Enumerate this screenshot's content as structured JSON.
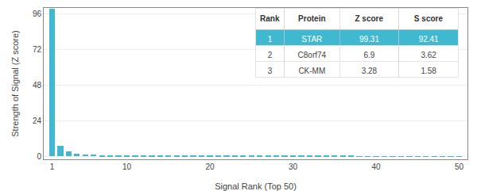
{
  "chart_data": {
    "type": "bar",
    "x": [
      1,
      2,
      3,
      4,
      5,
      6,
      7,
      8,
      9,
      10,
      11,
      12,
      13,
      14,
      15,
      16,
      17,
      18,
      19,
      20,
      21,
      22,
      23,
      24,
      25,
      26,
      27,
      28,
      29,
      30,
      31,
      32,
      33,
      34,
      35,
      36,
      37,
      38,
      39,
      40,
      41,
      42,
      43,
      44,
      45,
      46,
      47,
      48,
      49,
      50
    ],
    "values": [
      99.31,
      6.9,
      3.28,
      1.8,
      1.4,
      1.1,
      0.9,
      0.8,
      0.7,
      0.65,
      0.6,
      0.55,
      0.5,
      0.48,
      0.45,
      0.42,
      0.4,
      0.38,
      0.35,
      0.33,
      0.31,
      0.3,
      0.28,
      0.27,
      0.26,
      0.25,
      0.24,
      0.23,
      0.22,
      0.21,
      0.2,
      0.19,
      0.18,
      0.17,
      0.16,
      0.15,
      0.14,
      0.13,
      0.12,
      0.11,
      0.1,
      0.09,
      0.08,
      0.07,
      0.06,
      0.05,
      0.04,
      0.03,
      0.02,
      0.01
    ],
    "color": "#40b8d0",
    "xlabel": "Signal Rank (Top 50)",
    "ylabel": "Strength of Signal (Z score)",
    "xlim": [
      0,
      51
    ],
    "xticks": [
      1,
      10,
      20,
      30,
      40,
      50
    ],
    "ylim": [
      -2,
      100
    ],
    "yticks": [
      0,
      24,
      48,
      72,
      96
    ],
    "grid": true,
    "table": {
      "headers": [
        "Rank",
        "Protein",
        "Z score",
        "S score"
      ],
      "rows": [
        [
          "1",
          "STAR",
          "99.31",
          "92.41"
        ],
        [
          "2",
          "C8orf74",
          "6.9",
          "3.62"
        ],
        [
          "3",
          "CK-MM",
          "3.28",
          "1.58"
        ]
      ]
    }
  }
}
